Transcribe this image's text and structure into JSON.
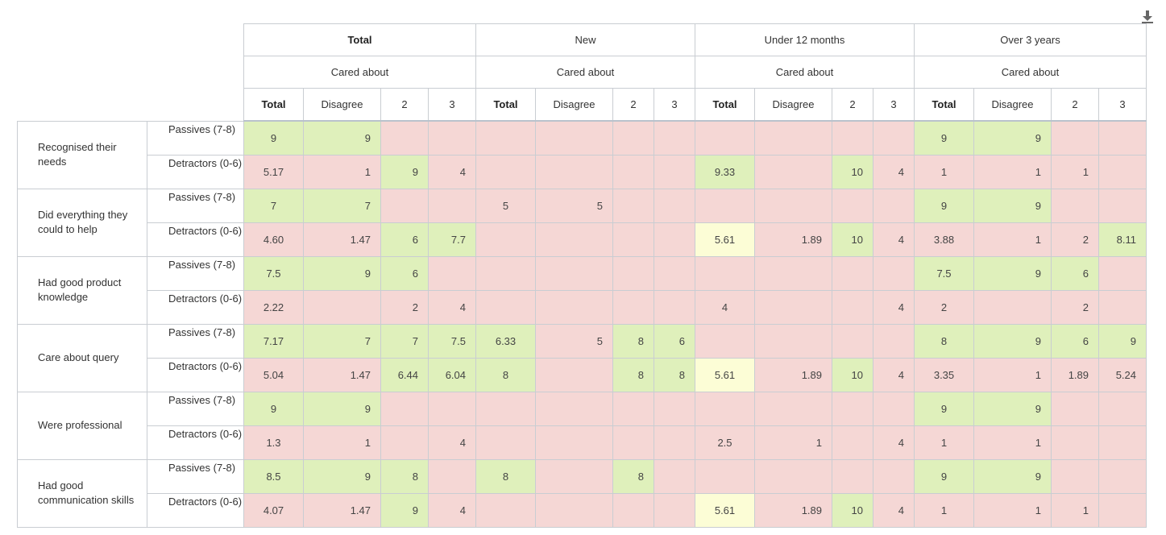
{
  "toolbar": {
    "download_icon": "download-icon"
  },
  "headers": {
    "groups": [
      "Total",
      "New",
      "Under 12 months",
      "Over 3 years"
    ],
    "measure": "Cared about",
    "columns": [
      "Total",
      "Disagree",
      "2",
      "3"
    ]
  },
  "colors": {
    "red": "#f5d7d5",
    "green": "#dff0bb",
    "yellow": "#fcfdd6"
  },
  "rows": [
    {
      "label": "Recognised their needs",
      "subs": [
        {
          "label": "Passives (7-8)",
          "cells": [
            [
              "9",
              "g"
            ],
            [
              "9",
              "g"
            ],
            [
              "",
              "r"
            ],
            [
              "",
              "r"
            ],
            [
              "",
              "r"
            ],
            [
              "",
              "r"
            ],
            [
              "",
              "r"
            ],
            [
              "",
              "r"
            ],
            [
              "",
              "r"
            ],
            [
              "",
              "r"
            ],
            [
              "",
              "r"
            ],
            [
              "",
              "r"
            ],
            [
              "9",
              "g"
            ],
            [
              "9",
              "g"
            ],
            [
              "",
              "r"
            ],
            [
              "",
              "r"
            ]
          ]
        },
        {
          "label": "Detractors (0-6)",
          "cells": [
            [
              "5.17",
              "r"
            ],
            [
              "1",
              "r"
            ],
            [
              "9",
              "g"
            ],
            [
              "4",
              "r"
            ],
            [
              "",
              "r"
            ],
            [
              "",
              "r"
            ],
            [
              "",
              "r"
            ],
            [
              "",
              "r"
            ],
            [
              "9.33",
              "g"
            ],
            [
              "",
              "r"
            ],
            [
              "10",
              "g"
            ],
            [
              "4",
              "r"
            ],
            [
              "1",
              "r"
            ],
            [
              "1",
              "r"
            ],
            [
              "1",
              "r"
            ],
            [
              "",
              "r"
            ]
          ]
        }
      ]
    },
    {
      "label": "Did everything they could to help",
      "subs": [
        {
          "label": "Passives (7-8)",
          "cells": [
            [
              "7",
              "g"
            ],
            [
              "7",
              "g"
            ],
            [
              "",
              "r"
            ],
            [
              "",
              "r"
            ],
            [
              "5",
              "r"
            ],
            [
              "5",
              "r"
            ],
            [
              "",
              "r"
            ],
            [
              "",
              "r"
            ],
            [
              "",
              "r"
            ],
            [
              "",
              "r"
            ],
            [
              "",
              "r"
            ],
            [
              "",
              "r"
            ],
            [
              "9",
              "g"
            ],
            [
              "9",
              "g"
            ],
            [
              "",
              "r"
            ],
            [
              "",
              "r"
            ]
          ]
        },
        {
          "label": "Detractors (0-6)",
          "cells": [
            [
              "4.60",
              "r"
            ],
            [
              "1.47",
              "r"
            ],
            [
              "6",
              "g"
            ],
            [
              "7.7",
              "g"
            ],
            [
              "",
              "r"
            ],
            [
              "",
              "r"
            ],
            [
              "",
              "r"
            ],
            [
              "",
              "r"
            ],
            [
              "5.61",
              "y"
            ],
            [
              "1.89",
              "r"
            ],
            [
              "10",
              "g"
            ],
            [
              "4",
              "r"
            ],
            [
              "3.88",
              "r"
            ],
            [
              "1",
              "r"
            ],
            [
              "2",
              "r"
            ],
            [
              "8.11",
              "g"
            ]
          ]
        }
      ]
    },
    {
      "label": "Had good product knowledge",
      "subs": [
        {
          "label": "Passives (7-8)",
          "cells": [
            [
              "7.5",
              "g"
            ],
            [
              "9",
              "g"
            ],
            [
              "6",
              "g"
            ],
            [
              "",
              "r"
            ],
            [
              "",
              "r"
            ],
            [
              "",
              "r"
            ],
            [
              "",
              "r"
            ],
            [
              "",
              "r"
            ],
            [
              "",
              "r"
            ],
            [
              "",
              "r"
            ],
            [
              "",
              "r"
            ],
            [
              "",
              "r"
            ],
            [
              "7.5",
              "g"
            ],
            [
              "9",
              "g"
            ],
            [
              "6",
              "g"
            ],
            [
              "",
              "r"
            ]
          ]
        },
        {
          "label": "Detractors (0-6)",
          "cells": [
            [
              "2.22",
              "r"
            ],
            [
              "",
              "r"
            ],
            [
              "2",
              "r"
            ],
            [
              "4",
              "r"
            ],
            [
              "",
              "r"
            ],
            [
              "",
              "r"
            ],
            [
              "",
              "r"
            ],
            [
              "",
              "r"
            ],
            [
              "4",
              "r"
            ],
            [
              "",
              "r"
            ],
            [
              "",
              "r"
            ],
            [
              "4",
              "r"
            ],
            [
              "2",
              "r"
            ],
            [
              "",
              "r"
            ],
            [
              "2",
              "r"
            ],
            [
              "",
              "r"
            ]
          ]
        }
      ]
    },
    {
      "label": "Care about query",
      "subs": [
        {
          "label": "Passives (7-8)",
          "cells": [
            [
              "7.17",
              "g"
            ],
            [
              "7",
              "g"
            ],
            [
              "7",
              "g"
            ],
            [
              "7.5",
              "g"
            ],
            [
              "6.33",
              "g"
            ],
            [
              "5",
              "r"
            ],
            [
              "8",
              "g"
            ],
            [
              "6",
              "g"
            ],
            [
              "",
              "r"
            ],
            [
              "",
              "r"
            ],
            [
              "",
              "r"
            ],
            [
              "",
              "r"
            ],
            [
              "8",
              "g"
            ],
            [
              "9",
              "g"
            ],
            [
              "6",
              "g"
            ],
            [
              "9",
              "g"
            ]
          ]
        },
        {
          "label": "Detractors (0-6)",
          "cells": [
            [
              "5.04",
              "r"
            ],
            [
              "1.47",
              "r"
            ],
            [
              "6.44",
              "g"
            ],
            [
              "6.04",
              "g"
            ],
            [
              "8",
              "g"
            ],
            [
              "",
              "r"
            ],
            [
              "8",
              "g"
            ],
            [
              "8",
              "g"
            ],
            [
              "5.61",
              "y"
            ],
            [
              "1.89",
              "r"
            ],
            [
              "10",
              "g"
            ],
            [
              "4",
              "r"
            ],
            [
              "3.35",
              "r"
            ],
            [
              "1",
              "r"
            ],
            [
              "1.89",
              "r"
            ],
            [
              "5.24",
              "r"
            ]
          ]
        }
      ]
    },
    {
      "label": "Were professional",
      "subs": [
        {
          "label": "Passives (7-8)",
          "cells": [
            [
              "9",
              "g"
            ],
            [
              "9",
              "g"
            ],
            [
              "",
              "r"
            ],
            [
              "",
              "r"
            ],
            [
              "",
              "r"
            ],
            [
              "",
              "r"
            ],
            [
              "",
              "r"
            ],
            [
              "",
              "r"
            ],
            [
              "",
              "r"
            ],
            [
              "",
              "r"
            ],
            [
              "",
              "r"
            ],
            [
              "",
              "r"
            ],
            [
              "9",
              "g"
            ],
            [
              "9",
              "g"
            ],
            [
              "",
              "r"
            ],
            [
              "",
              "r"
            ]
          ]
        },
        {
          "label": "Detractors (0-6)",
          "cells": [
            [
              "1.3",
              "r"
            ],
            [
              "1",
              "r"
            ],
            [
              "",
              "r"
            ],
            [
              "4",
              "r"
            ],
            [
              "",
              "r"
            ],
            [
              "",
              "r"
            ],
            [
              "",
              "r"
            ],
            [
              "",
              "r"
            ],
            [
              "2.5",
              "r"
            ],
            [
              "1",
              "r"
            ],
            [
              "",
              "r"
            ],
            [
              "4",
              "r"
            ],
            [
              "1",
              "r"
            ],
            [
              "1",
              "r"
            ],
            [
              "",
              "r"
            ],
            [
              "",
              "r"
            ]
          ]
        }
      ]
    },
    {
      "label": "Had good communication skills",
      "subs": [
        {
          "label": "Passives (7-8)",
          "cells": [
            [
              "8.5",
              "g"
            ],
            [
              "9",
              "g"
            ],
            [
              "8",
              "g"
            ],
            [
              "",
              "r"
            ],
            [
              "8",
              "g"
            ],
            [
              "",
              "r"
            ],
            [
              "8",
              "g"
            ],
            [
              "",
              "r"
            ],
            [
              "",
              "r"
            ],
            [
              "",
              "r"
            ],
            [
              "",
              "r"
            ],
            [
              "",
              "r"
            ],
            [
              "9",
              "g"
            ],
            [
              "9",
              "g"
            ],
            [
              "",
              "r"
            ],
            [
              "",
              "r"
            ]
          ]
        },
        {
          "label": "Detractors (0-6)",
          "cells": [
            [
              "4.07",
              "r"
            ],
            [
              "1.47",
              "r"
            ],
            [
              "9",
              "g"
            ],
            [
              "4",
              "r"
            ],
            [
              "",
              "r"
            ],
            [
              "",
              "r"
            ],
            [
              "",
              "r"
            ],
            [
              "",
              "r"
            ],
            [
              "5.61",
              "y"
            ],
            [
              "1.89",
              "r"
            ],
            [
              "10",
              "g"
            ],
            [
              "4",
              "r"
            ],
            [
              "1",
              "r"
            ],
            [
              "1",
              "r"
            ],
            [
              "1",
              "r"
            ],
            [
              "",
              "r"
            ]
          ]
        }
      ]
    }
  ]
}
